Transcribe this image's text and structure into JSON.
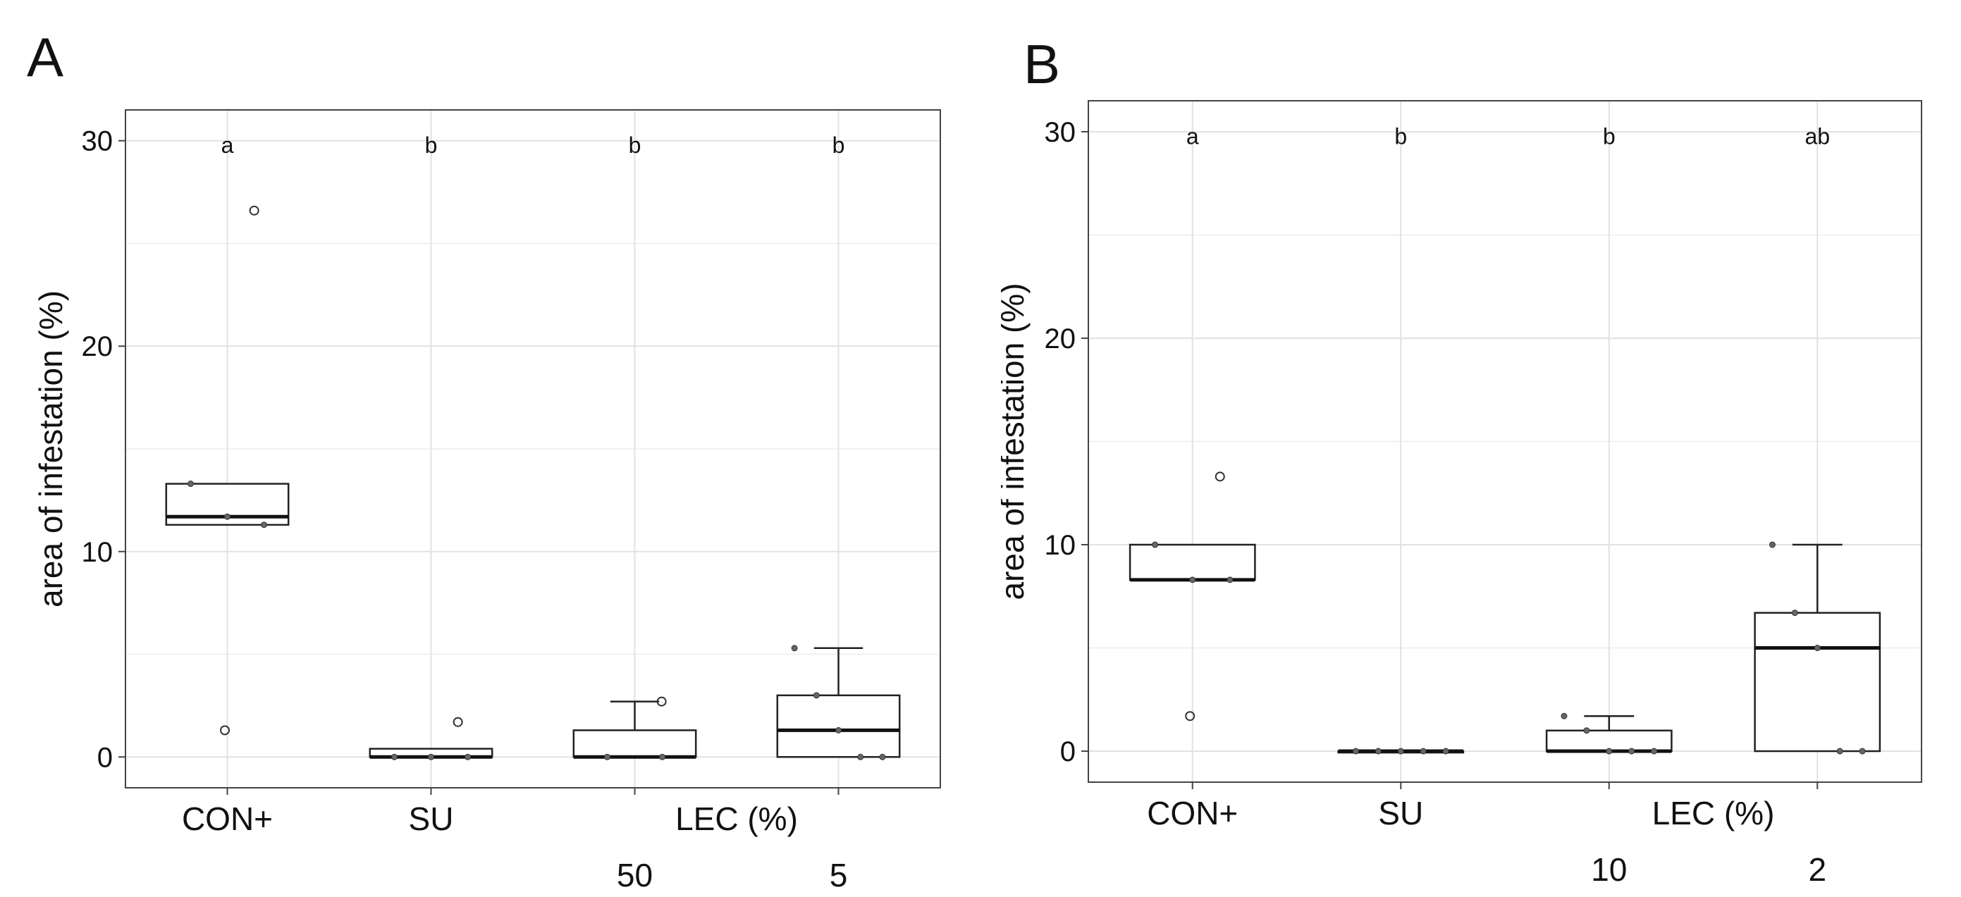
{
  "chart_data": [
    {
      "panel": "A",
      "type": "box",
      "ylabel": "area of infestation (%)",
      "ylim": [
        -1.5,
        31.5
      ],
      "yticks": [
        0,
        10,
        20,
        30
      ],
      "grid": true,
      "group_label": "LEC (%)",
      "categories": [
        {
          "label": "CON+",
          "sublabel": "",
          "letter": "a",
          "box": {
            "q1": 11.3,
            "median": 11.7,
            "q3": 13.3,
            "whisker_low": 11.3,
            "whisker_high": 13.3
          },
          "points": [
            13.3,
            11.7,
            11.3
          ],
          "outliers": [
            26.6,
            1.3
          ]
        },
        {
          "label": "SU",
          "sublabel": "",
          "letter": "b",
          "box": {
            "q1": 0.0,
            "median": 0.0,
            "q3": 0.4,
            "whisker_low": 0.0,
            "whisker_high": 0.4
          },
          "points": [
            0,
            0,
            0
          ],
          "outliers": [
            1.7
          ]
        },
        {
          "label": "",
          "sublabel": "50",
          "letter": "b",
          "box": {
            "q1": 0.0,
            "median": 0.0,
            "q3": 1.3,
            "whisker_low": 0.0,
            "whisker_high": 2.7
          },
          "points": [
            0,
            0
          ],
          "outliers": [
            2.7
          ]
        },
        {
          "label": "",
          "sublabel": "5",
          "letter": "b",
          "box": {
            "q1": 0.0,
            "median": 1.3,
            "q3": 3.0,
            "whisker_low": 0.0,
            "whisker_high": 5.3
          },
          "points": [
            5.3,
            3.0,
            1.3,
            0,
            0
          ],
          "outliers": []
        }
      ]
    },
    {
      "panel": "B",
      "type": "box",
      "ylabel": "area of infestation (%)",
      "ylim": [
        -1.5,
        31.5
      ],
      "yticks": [
        0,
        10,
        20,
        30
      ],
      "grid": true,
      "group_label": "LEC (%)",
      "categories": [
        {
          "label": "CON+",
          "sublabel": "",
          "letter": "a",
          "box": {
            "q1": 8.3,
            "median": 8.3,
            "q3": 10.0,
            "whisker_low": 8.3,
            "whisker_high": 10.0
          },
          "points": [
            10.0,
            8.3,
            8.3
          ],
          "outliers": [
            13.3,
            1.7
          ]
        },
        {
          "label": "SU",
          "sublabel": "",
          "letter": "b",
          "box": {
            "q1": 0.0,
            "median": 0.0,
            "q3": 0.0,
            "whisker_low": 0.0,
            "whisker_high": 0.0
          },
          "points": [
            0,
            0,
            0,
            0,
            0
          ],
          "outliers": []
        },
        {
          "label": "",
          "sublabel": "10",
          "letter": "b",
          "box": {
            "q1": 0.0,
            "median": 0.0,
            "q3": 1.0,
            "whisker_low": 0.0,
            "whisker_high": 1.7
          },
          "points": [
            1.7,
            1.0,
            0,
            0,
            0
          ],
          "outliers": []
        },
        {
          "label": "",
          "sublabel": "2",
          "letter": "ab",
          "box": {
            "q1": 0.0,
            "median": 5.0,
            "q3": 6.7,
            "whisker_low": 0.0,
            "whisker_high": 10.0
          },
          "points": [
            10.0,
            6.7,
            5.0,
            0,
            0
          ],
          "outliers": []
        }
      ]
    }
  ]
}
